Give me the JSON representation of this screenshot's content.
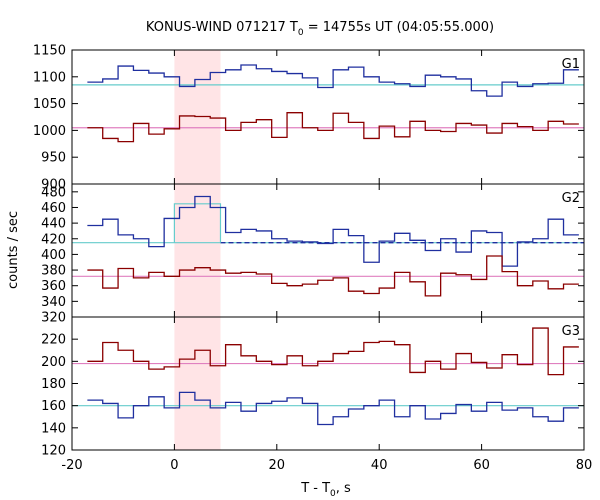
{
  "chart_data": {
    "type": "line",
    "title_main": "KONUS-WIND 071217 T",
    "title_sub": "0",
    "title_rest": " = 14755s UT (04:05:55.000)",
    "xlabel_main": "T - T",
    "xlabel_sub": "0",
    "xlabel_rest": ", s",
    "ylabel": "counts / sec",
    "xlim": [
      -20,
      80
    ],
    "xticks": [
      "-20",
      "0",
      "20",
      "40",
      "60",
      "80"
    ],
    "highlight": [
      0,
      9
    ],
    "bin_edges": [
      -17,
      -14,
      -11,
      -8,
      -5,
      -2,
      1,
      4,
      7,
      10,
      13,
      16,
      19,
      22,
      25,
      28,
      31,
      34,
      37,
      40,
      43,
      46,
      49,
      52,
      55,
      58,
      61,
      64,
      67,
      70,
      73,
      76,
      79
    ],
    "colors": {
      "upper": "#1f2f9f",
      "lower": "#8b0000",
      "upper_bg": "#66cccc",
      "lower_bg": "#e080c0",
      "highlight": "#ffe4e6",
      "fit_line": "#1f2f9f"
    },
    "panels": [
      {
        "name": "G1",
        "ylim": [
          900,
          1150
        ],
        "yticks": [
          "900",
          "950",
          "1000",
          "1050",
          "1100",
          "1150"
        ],
        "series": [
          {
            "key": "upper",
            "background": 1085,
            "values": [
              1090,
              1096,
              1120,
              1112,
              1107,
              1100,
              1082,
              1095,
              1108,
              1113,
              1122,
              1115,
              1110,
              1106,
              1098,
              1080,
              1113,
              1118,
              1100,
              1090,
              1087,
              1082,
              1103,
              1100,
              1096,
              1074,
              1064,
              1090,
              1082,
              1087,
              1088,
              1113
            ]
          },
          {
            "key": "lower",
            "background": 1005,
            "values": [
              1005,
              985,
              979,
              1013,
              993,
              1003,
              1027,
              1026,
              1023,
              1000,
              1015,
              1020,
              987,
              1033,
              1005,
              1000,
              1032,
              1015,
              985,
              1008,
              988,
              1017,
              1000,
              998,
              1013,
              1010,
              995,
              1013,
              1007,
              1000,
              1017,
              1012
            ]
          }
        ]
      },
      {
        "name": "G2",
        "ylim": [
          320,
          490
        ],
        "yticks": [
          "320",
          "340",
          "360",
          "380",
          "400",
          "420",
          "440",
          "460",
          "480"
        ],
        "series": [
          {
            "key": "upper",
            "background": 415,
            "fit": 415,
            "values": [
              437,
              445,
              425,
              420,
              410,
              446,
              460,
              474,
              460,
              428,
              432,
              430,
              420,
              417,
              416,
              414,
              432,
              424,
              390,
              417,
              427,
              418,
              405,
              420,
              403,
              430,
              428,
              385,
              416,
              420,
              445,
              425
            ]
          },
          {
            "key": "lower",
            "background": 372,
            "values": [
              380,
              357,
              382,
              370,
              377,
              372,
              380,
              383,
              380,
              376,
              377,
              375,
              363,
              360,
              362,
              367,
              370,
              353,
              350,
              357,
              377,
              365,
              347,
              376,
              374,
              368,
              398,
              378,
              360,
              366,
              356,
              362
            ]
          }
        ]
      },
      {
        "name": "G3",
        "ylim": [
          120,
          240
        ],
        "yticks": [
          "120",
          "140",
          "160",
          "180",
          "200",
          "220"
        ],
        "series": [
          {
            "key": "upper",
            "background": 160,
            "values": [
              165,
              162,
              149,
              160,
              168,
              158,
              172,
              165,
              158,
              163,
              155,
              162,
              164,
              167,
              162,
              143,
              150,
              157,
              160,
              165,
              150,
              160,
              148,
              153,
              161,
              155,
              163,
              156,
              158,
              150,
              146,
              158
            ]
          },
          {
            "key": "lower",
            "background": 198,
            "values": [
              200,
              217,
              210,
              200,
              193,
              195,
              202,
              210,
              196,
              215,
              205,
              200,
              197,
              205,
              196,
              200,
              207,
              209,
              217,
              218,
              215,
              190,
              200,
              193,
              207,
              199,
              194,
              206,
              197,
              230,
              188,
              213
            ]
          }
        ]
      }
    ]
  }
}
